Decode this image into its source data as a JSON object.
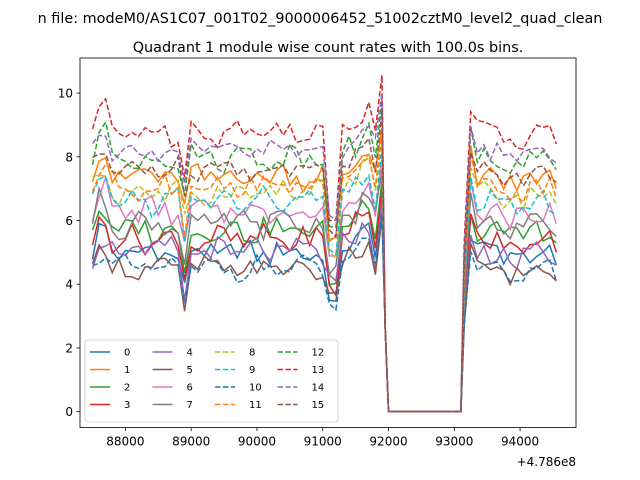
{
  "figure": {
    "suptitle": "n file: modeM0/AS1C07_001T02_9000006452_51002cztM0_level2_quad_clean",
    "title": "Quadrant 1 module wise count rates with 100.0s bins.",
    "x_offset_label": "+4.786e8"
  },
  "chart_data": {
    "type": "line",
    "title": "Quadrant 1 module wise count rates with 100.0s bins.",
    "xlabel": "",
    "ylabel": "",
    "x_offset": 478600000,
    "xlim": [
      87310,
      94850
    ],
    "ylim": [
      -0.5,
      11.1
    ],
    "xticks": [
      88000,
      89000,
      90000,
      91000,
      92000,
      93000,
      94000
    ],
    "yticks": [
      0,
      2,
      4,
      6,
      8,
      10
    ],
    "x_start": 87500,
    "x_step": 100,
    "segments": [
      {
        "x_from": 87500,
        "x_to": 91900,
        "x_step": 100
      },
      {
        "x_from": 92000,
        "x_to": 93100,
        "x_step": 100
      },
      {
        "x_from": 93150,
        "x_to": 94550,
        "x_step": 100
      }
    ],
    "legend": {
      "location": "lower left",
      "columns": 4
    },
    "grid": false,
    "series": [
      {
        "name": "0",
        "color": "#1f77b4",
        "dash": "solid",
        "base": 5.0,
        "amp": 0.35,
        "dip": 3.3
      },
      {
        "name": "1",
        "color": "#ff7f0e",
        "dash": "solid",
        "base": 7.4,
        "amp": 0.35,
        "dip": 5.3
      },
      {
        "name": "2",
        "color": "#2ca02c",
        "dash": "solid",
        "base": 5.7,
        "amp": 0.35,
        "dip": 3.9
      },
      {
        "name": "3",
        "color": "#d62728",
        "dash": "solid",
        "base": 5.4,
        "amp": 0.35,
        "dip": 3.8
      },
      {
        "name": "4",
        "color": "#9467bd",
        "dash": "solid",
        "base": 5.0,
        "amp": 0.4,
        "dip": 4.2
      },
      {
        "name": "5",
        "color": "#8c564b",
        "dash": "solid",
        "base": 4.5,
        "amp": 0.3,
        "dip": 3.6
      },
      {
        "name": "6",
        "color": "#e377c2",
        "dash": "solid",
        "base": 6.3,
        "amp": 0.35,
        "dip": 4.7
      },
      {
        "name": "7",
        "color": "#7f7f7f",
        "dash": "solid",
        "base": 5.9,
        "amp": 0.35,
        "dip": 4.4
      },
      {
        "name": "8",
        "color": "#bcbd22",
        "dash": "dashed",
        "base": 6.9,
        "amp": 0.35,
        "dip": 5.0
      },
      {
        "name": "9",
        "color": "#17becf",
        "dash": "dashed",
        "base": 6.6,
        "amp": 0.35,
        "dip": 5.0
      },
      {
        "name": "10",
        "color": "#1f77b4",
        "dash": "dashed",
        "base": 4.5,
        "amp": 0.3,
        "dip": 3.2
      },
      {
        "name": "11",
        "color": "#ff7f0e",
        "dash": "dashed",
        "base": 7.1,
        "amp": 0.35,
        "dip": 5.4
      },
      {
        "name": "12",
        "color": "#2ca02c",
        "dash": "dashed",
        "base": 8.0,
        "amp": 0.35,
        "dip": 5.8
      },
      {
        "name": "13",
        "color": "#d62728",
        "dash": "dashed",
        "base": 8.8,
        "amp": 0.35,
        "dip": 6.2
      },
      {
        "name": "14",
        "color": "#9467bd",
        "dash": "dashed",
        "base": 8.2,
        "amp": 0.3,
        "dip": 6.0
      },
      {
        "name": "15",
        "color": "#8c564b",
        "dash": "dashed",
        "base": 7.6,
        "amp": 0.3,
        "dip": 5.6
      }
    ]
  }
}
